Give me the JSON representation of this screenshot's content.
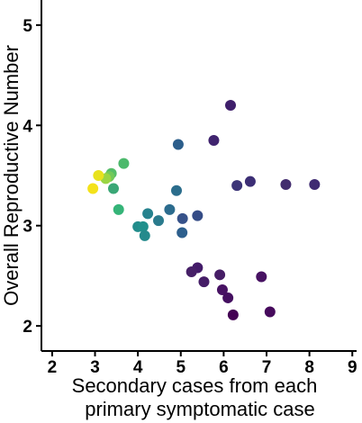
{
  "chart_data": {
    "type": "scatter",
    "title": "",
    "xlabel_lines": [
      "Secondary cases from each",
      "primary symptomatic case"
    ],
    "ylabel": "Overall Reproductive Number",
    "xlim": [
      1.75,
      9.1
    ],
    "ylim": [
      1.75,
      5.25
    ],
    "x_ticks": [
      2,
      3,
      4,
      5,
      6,
      7,
      8,
      9
    ],
    "y_ticks": [
      2,
      3,
      4,
      5
    ],
    "grid": false,
    "legend": "none",
    "colormap": "viridis",
    "points": [
      {
        "x": 6.16,
        "y": 4.2,
        "color": "#3f1f6b"
      },
      {
        "x": 5.77,
        "y": 3.85,
        "color": "#40246f"
      },
      {
        "x": 4.94,
        "y": 3.81,
        "color": "#2c5e8b"
      },
      {
        "x": 3.67,
        "y": 3.62,
        "color": "#4cb96c"
      },
      {
        "x": 3.38,
        "y": 3.52,
        "color": "#55be68"
      },
      {
        "x": 3.33,
        "y": 3.49,
        "color": "#72c95a"
      },
      {
        "x": 3.25,
        "y": 3.47,
        "color": "#9ad544"
      },
      {
        "x": 3.08,
        "y": 3.5,
        "color": "#e8e21d"
      },
      {
        "x": 2.95,
        "y": 3.37,
        "color": "#f4e21a"
      },
      {
        "x": 3.43,
        "y": 3.37,
        "color": "#3aa776"
      },
      {
        "x": 6.62,
        "y": 3.44,
        "color": "#3c2e75"
      },
      {
        "x": 6.31,
        "y": 3.4,
        "color": "#3c3578"
      },
      {
        "x": 7.45,
        "y": 3.41,
        "color": "#432d6f"
      },
      {
        "x": 8.12,
        "y": 3.41,
        "color": "#3f2b72"
      },
      {
        "x": 4.9,
        "y": 3.35,
        "color": "#2b6d8c"
      },
      {
        "x": 3.55,
        "y": 3.16,
        "color": "#35b478"
      },
      {
        "x": 4.74,
        "y": 3.16,
        "color": "#2c6c8e"
      },
      {
        "x": 4.23,
        "y": 3.12,
        "color": "#26828e"
      },
      {
        "x": 5.39,
        "y": 3.1,
        "color": "#354c86"
      },
      {
        "x": 5.04,
        "y": 3.07,
        "color": "#37528a"
      },
      {
        "x": 4.48,
        "y": 3.05,
        "color": "#2a7b8d"
      },
      {
        "x": 4.0,
        "y": 2.99,
        "color": "#228c8b"
      },
      {
        "x": 4.12,
        "y": 2.99,
        "color": "#21908c"
      },
      {
        "x": 5.03,
        "y": 2.93,
        "color": "#2d5f8d"
      },
      {
        "x": 4.16,
        "y": 2.9,
        "color": "#248a8c"
      },
      {
        "x": 5.39,
        "y": 2.58,
        "color": "#431b69"
      },
      {
        "x": 5.25,
        "y": 2.54,
        "color": "#462067"
      },
      {
        "x": 5.91,
        "y": 2.51,
        "color": "#461d66"
      },
      {
        "x": 6.88,
        "y": 2.49,
        "color": "#471262"
      },
      {
        "x": 5.54,
        "y": 2.44,
        "color": "#451d67"
      },
      {
        "x": 5.97,
        "y": 2.36,
        "color": "#471263"
      },
      {
        "x": 6.1,
        "y": 2.28,
        "color": "#440f60"
      },
      {
        "x": 6.22,
        "y": 2.11,
        "color": "#440154"
      },
      {
        "x": 7.08,
        "y": 2.14,
        "color": "#460a5c"
      }
    ]
  }
}
